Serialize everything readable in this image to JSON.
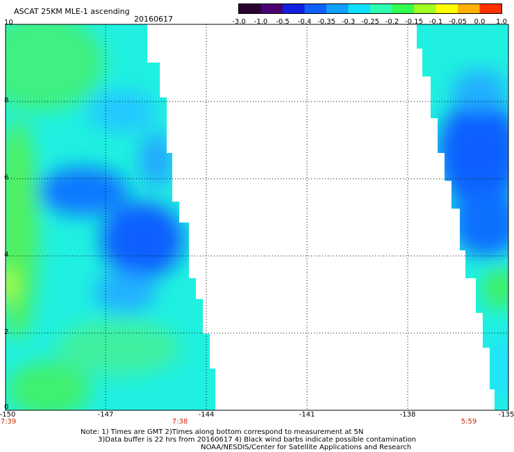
{
  "header": {
    "title": "ASCAT 25KM MLE-1 ascending",
    "date": "20160617"
  },
  "colorbar": {
    "labels": [
      "-3.0",
      "-1.0",
      "-0.5",
      "-0.4",
      "-0.35",
      "-0.3",
      "-0.25",
      "-0.2",
      "-0.15",
      "-0.1",
      "-0.05",
      "0.0",
      "1.0"
    ],
    "colors": [
      "#2a0030",
      "#4a0070",
      "#1020e0",
      "#1060ff",
      "#10a0ff",
      "#10e0ff",
      "#30ffb0",
      "#30ff50",
      "#a0ff20",
      "#ffff00",
      "#ffb000",
      "#ff3000"
    ]
  },
  "axes": {
    "y_ticks": [
      "10",
      "8",
      "6",
      "4",
      "2",
      "0"
    ],
    "x_ticks": [
      "-150",
      "-147",
      "-144",
      "-141",
      "-138",
      "-135"
    ],
    "time_labels": [
      "7:39",
      "7:38",
      "5:59"
    ]
  },
  "notes": {
    "line1": "Note: 1) Times are GMT 2)Times along bottom correspond to measurement at 5N",
    "line2": "3)Data buffer is 22 hrs from 20160617 4) Black wind barbs indicate possible contamination",
    "line3": "NOAA/NESDIS/Center for Satellite Applications and Research"
  }
}
